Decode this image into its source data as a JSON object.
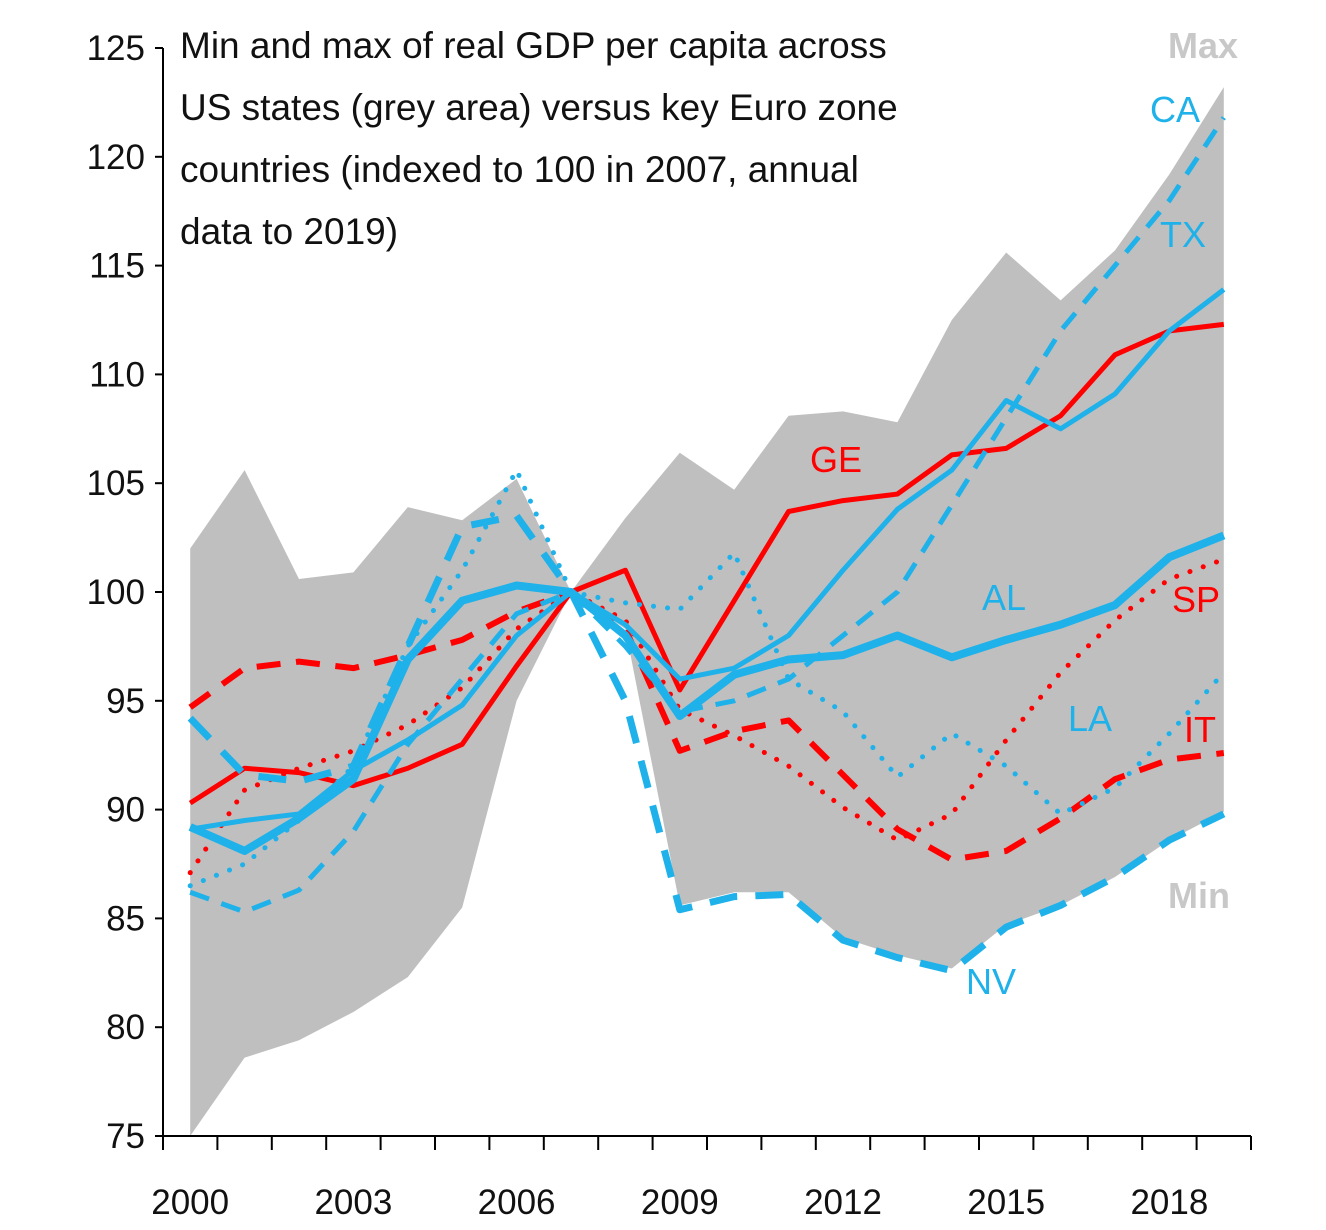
{
  "chart_data": {
    "type": "line",
    "title_lines": [
      "Min and max of real GDP per capita across",
      "US states (grey area) versus key Euro zone",
      "countries (indexed to 100 in 2007,  annual",
      "data to 2019)"
    ],
    "xlabel": "",
    "ylabel": "",
    "x": [
      2000,
      2001,
      2002,
      2003,
      2004,
      2005,
      2006,
      2007,
      2008,
      2009,
      2010,
      2011,
      2012,
      2013,
      2014,
      2015,
      2016,
      2017,
      2018,
      2019
    ],
    "x_tick_labels": [
      "2000",
      "2003",
      "2006",
      "2009",
      "2012",
      "2015",
      "2018"
    ],
    "x_tick_years": [
      2000,
      2003,
      2006,
      2009,
      2012,
      2015,
      2018
    ],
    "ylim": [
      75,
      125
    ],
    "y_ticks": [
      75,
      80,
      85,
      90,
      95,
      100,
      105,
      110,
      115,
      120,
      125
    ],
    "grid": false,
    "colors": {
      "us": "#1eb1ea",
      "euro": "#ff0000",
      "band": "#bfbfbf",
      "band_label": "#c8c8c8"
    },
    "band": {
      "max_label": "Max",
      "min_label": "Min",
      "max": [
        102.0,
        105.6,
        100.6,
        100.9,
        103.9,
        103.3,
        105.2,
        100.0,
        103.4,
        106.4,
        104.7,
        108.1,
        108.3,
        107.8,
        112.5,
        115.6,
        113.4,
        115.7,
        119.2,
        123.2
      ],
      "min": [
        75.0,
        78.6,
        79.4,
        80.7,
        82.3,
        85.5,
        95.0,
        100.0,
        98.3,
        85.6,
        86.2,
        86.2,
        84.1,
        83.3,
        82.7,
        84.7,
        85.6,
        86.9,
        88.6,
        89.9
      ]
    },
    "series": [
      {
        "name": "GE",
        "group": "euro",
        "style": "solid",
        "width": 5,
        "values": [
          90.3,
          91.9,
          91.7,
          91.1,
          91.9,
          93.0,
          96.6,
          100.0,
          101.0,
          95.5,
          99.6,
          103.7,
          104.2,
          104.5,
          106.3,
          106.6,
          108.1,
          110.9,
          112.0,
          112.3
        ]
      },
      {
        "name": "SP",
        "group": "euro",
        "style": "dotted",
        "width": 5,
        "values": [
          87.1,
          90.9,
          91.9,
          92.7,
          93.9,
          95.6,
          98.3,
          100.0,
          98.7,
          94.6,
          93.4,
          92.0,
          90.1,
          88.6,
          89.8,
          93.2,
          96.3,
          98.7,
          100.6,
          101.5
        ]
      },
      {
        "name": "IT",
        "group": "euro",
        "style": "dashed",
        "width": 6,
        "values": [
          94.7,
          96.5,
          96.8,
          96.5,
          97.1,
          97.8,
          99.1,
          100.0,
          98.3,
          92.7,
          93.6,
          94.1,
          91.6,
          89.1,
          87.7,
          88.1,
          89.6,
          91.4,
          92.3,
          92.6
        ]
      },
      {
        "name": "CA",
        "group": "us",
        "style": "dashed",
        "width": 5,
        "values": [
          86.2,
          85.3,
          86.3,
          89.0,
          93.0,
          96.0,
          99.0,
          100.0,
          97.5,
          94.5,
          95.0,
          96.0,
          98.0,
          100.0,
          104.0,
          108.0,
          112.0,
          115.0,
          118.0,
          121.8
        ]
      },
      {
        "name": "TX",
        "group": "us",
        "style": "solid",
        "width": 5,
        "values": [
          89.1,
          89.5,
          89.8,
          91.8,
          93.2,
          94.8,
          98.0,
          100.0,
          98.5,
          96.0,
          96.5,
          98.0,
          101.0,
          103.8,
          105.6,
          108.8,
          107.5,
          109.1,
          112.0,
          113.9
        ]
      },
      {
        "name": "AL",
        "group": "us",
        "style": "solid",
        "width": 8,
        "values": [
          89.2,
          88.1,
          89.6,
          91.4,
          96.9,
          99.6,
          100.3,
          100.0,
          98.0,
          94.3,
          96.2,
          96.9,
          97.1,
          98.0,
          97.0,
          97.8,
          98.5,
          99.4,
          101.6,
          102.6
        ]
      },
      {
        "name": "LA",
        "group": "us",
        "style": "dotted",
        "width": 5,
        "values": [
          86.5,
          87.5,
          89.5,
          92.0,
          97.5,
          101.0,
          105.6,
          100.0,
          99.5,
          99.2,
          101.8,
          96.0,
          94.5,
          91.5,
          93.5,
          92.0,
          89.8,
          91.0,
          93.5,
          96.3
        ]
      },
      {
        "name": "NV",
        "group": "us",
        "style": "dashed",
        "width": 7,
        "values": [
          94.2,
          91.6,
          91.3,
          92.0,
          97.5,
          103.0,
          103.5,
          100.0,
          95.0,
          85.4,
          86.0,
          86.1,
          84.0,
          83.2,
          82.6,
          84.6,
          85.6,
          86.9,
          88.6,
          89.8
        ]
      }
    ]
  }
}
